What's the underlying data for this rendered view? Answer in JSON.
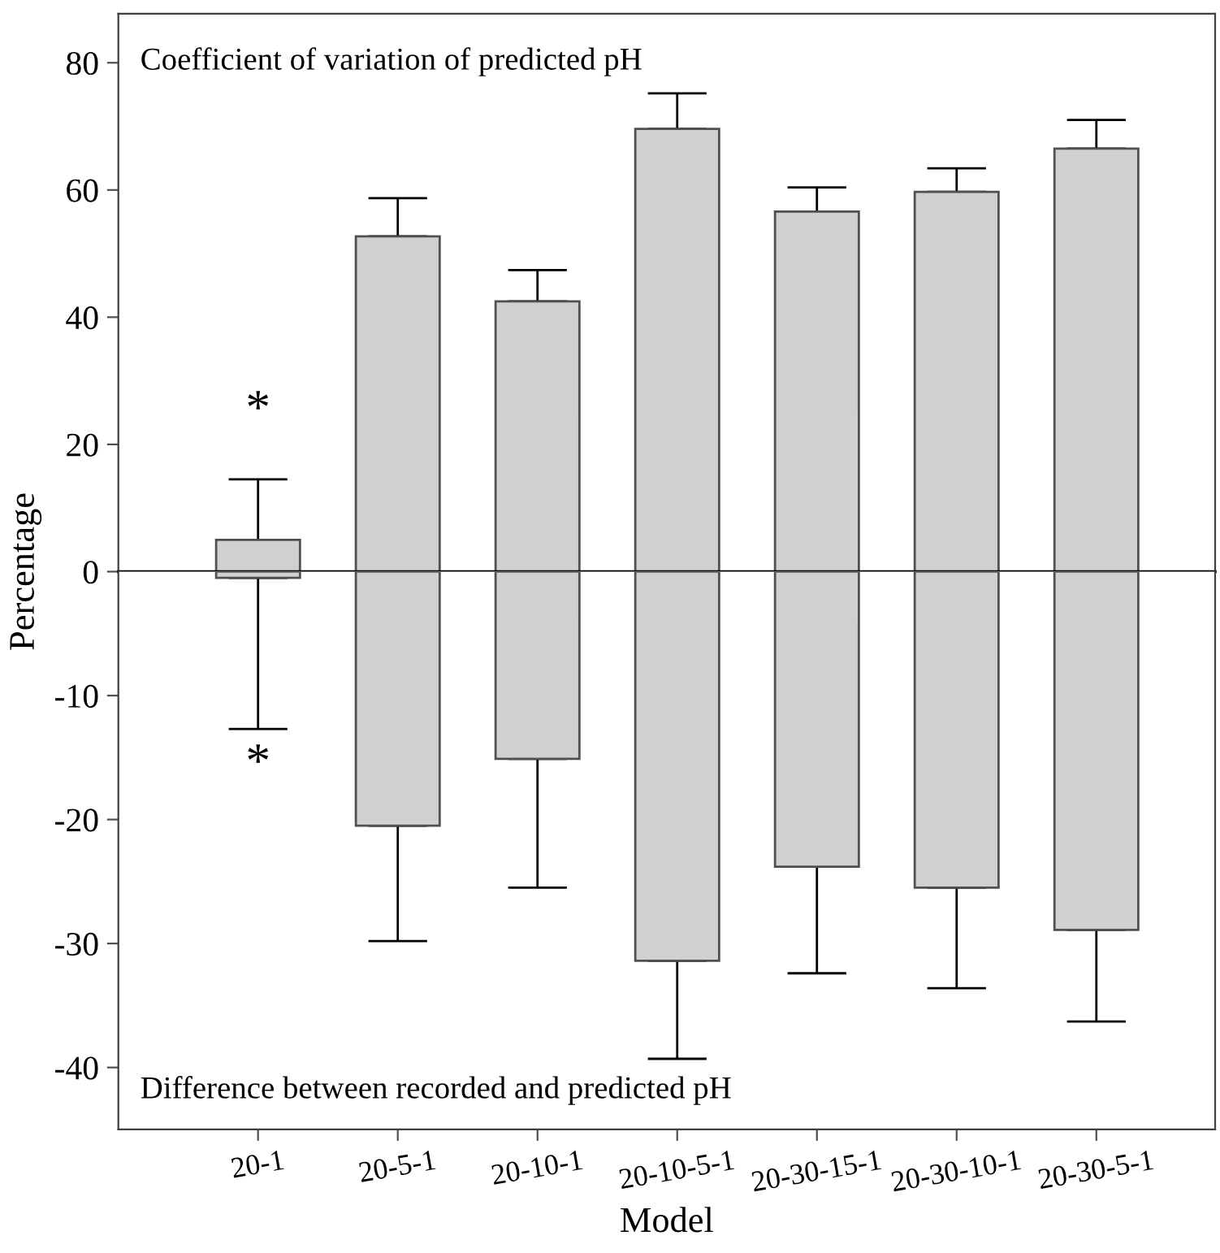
{
  "chart_data": [
    {
      "type": "bar",
      "ylabel": "Percentage",
      "values": [
        5.0,
        52.7,
        42.5,
        69.6,
        56.6,
        59.7,
        66.5
      ],
      "errors": [
        [
          5.0,
          14.5
        ],
        [
          52.7,
          58.7
        ],
        [
          42.5,
          47.4
        ],
        [
          69.6,
          75.2
        ],
        [
          56.6,
          60.4
        ],
        [
          59.7,
          63.4
        ],
        [
          66.5,
          71.0
        ]
      ],
      "color": "#d0d0d0",
      "ylim": [
        0,
        87.7
      ],
      "yticks": [
        80,
        60,
        40,
        20,
        0
      ],
      "annotations": [
        "Coefficient of variation of predicted pH",
        "*"
      ],
      "tick_labels": "y",
      "grid": false,
      "legend": false
    },
    {
      "type": "bar",
      "xlabel": "Model",
      "categories": [
        "20-1",
        "20-5-1",
        "20-10-1",
        "20-10-5-1",
        "20-30-15-1",
        "20-30-10-1",
        "20-30-5-1"
      ],
      "values": [
        -0.5,
        -20.5,
        -15.1,
        -31.4,
        -23.8,
        -25.5,
        -28.9
      ],
      "errors": [
        [
          -12.7,
          -0.5
        ],
        [
          -29.8,
          -20.5
        ],
        [
          -25.5,
          -15.1
        ],
        [
          -39.3,
          -31.4
        ],
        [
          -32.4,
          -23.8
        ],
        [
          -33.6,
          -25.5
        ],
        [
          -36.3,
          -28.9
        ]
      ],
      "color": "#d0d0d0",
      "ylim": [
        -45,
        0
      ],
      "yticks": [
        -10,
        -20,
        -30,
        -40
      ],
      "annotations": [
        "Difference between recorded and predicted pH",
        "*"
      ],
      "grid": false,
      "legend": false
    }
  ]
}
